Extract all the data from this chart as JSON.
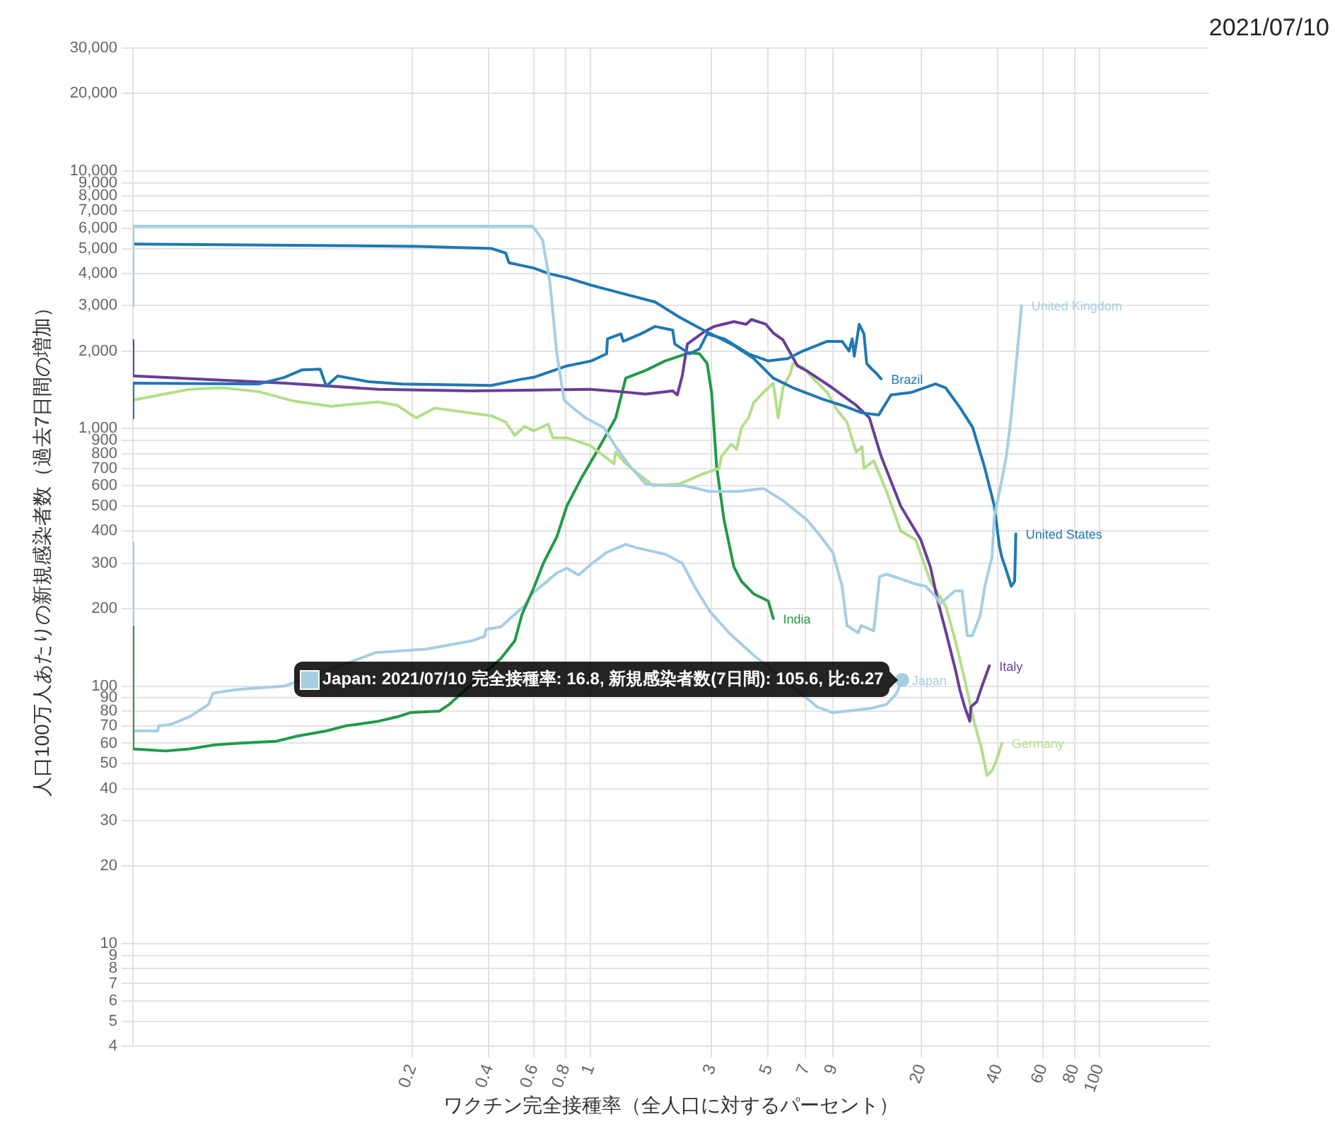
{
  "chart_data": {
    "type": "line",
    "title": "2021/07/10",
    "xlabel": "ワクチン完全接種率（全人口に対するパーセント）",
    "ylabel": "人口100万人あたりの新規感染者数（過去7日間の増加）",
    "log": "xy",
    "grid": true,
    "marker": "none",
    "line_style": "solid",
    "xlim": [
      0.016,
      270
    ],
    "ylim": [
      4,
      30000
    ],
    "xticks": [
      0.2,
      0.4,
      0.6,
      0.8,
      1,
      3,
      5,
      7,
      9,
      20,
      40,
      60,
      80,
      100
    ],
    "yticks": [
      4,
      5,
      6,
      7,
      8,
      9,
      10,
      20,
      30,
      40,
      50,
      60,
      70,
      80,
      90,
      100,
      200,
      300,
      400,
      500,
      600,
      700,
      800,
      900,
      {
        "value": 1000,
        "label": "1,000"
      },
      {
        "value": 2000,
        "label": "2,000"
      },
      {
        "value": 3000,
        "label": "3,000"
      },
      {
        "value": 4000,
        "label": "4,000"
      },
      {
        "value": 5000,
        "label": "5,000"
      },
      {
        "value": 6000,
        "label": "6,000"
      },
      {
        "value": 7000,
        "label": "7,000"
      },
      {
        "value": 8000,
        "label": "8,000"
      },
      {
        "value": 9000,
        "label": "9,000"
      },
      {
        "value": 10000,
        "label": "10,000"
      },
      {
        "value": 20000,
        "label": "20,000"
      },
      {
        "value": 30000,
        "label": "30,000"
      }
    ],
    "annotations": [
      {
        "text": "Japan: 2021/07/10 完全接種率: 16.8, 新規感染者数(7日間): 105.6, 比:6.27",
        "x": 16.8,
        "y": 105.6
      }
    ],
    "series": [
      {
        "name": "United Kingdom",
        "color": "#a6cee3",
        "x": [
          0.016,
          0.016,
          0.59,
          0.61,
          0.65,
          0.695,
          0.74,
          0.79,
          0.84,
          0.96,
          1.13,
          1.26,
          1.44,
          1.65,
          1.97,
          2.34,
          2.94,
          3.83,
          4.8,
          5.73,
          7.14,
          7.98,
          8.98,
          9.77,
          10.2,
          11.3,
          11.6,
          13.0,
          13.7,
          14.6,
          19.0,
          20.8,
          22.7,
          23.7,
          27.1,
          28.9,
          30.3,
          31.7,
          34.0,
          35.5,
          37.9,
          38.7,
          40.6,
          43.1,
          45.0,
          47.0,
          49.5
        ],
        "values": [
          3000,
          6100,
          6100,
          5900,
          5400,
          3700,
          1950,
          1290,
          1220,
          1100,
          1010,
          850,
          710,
          610,
          600,
          600,
          570,
          570,
          585,
          525,
          440,
          385,
          330,
          244,
          172,
          161,
          172,
          164,
          266,
          272,
          249,
          244,
          223,
          209,
          234,
          234,
          157,
          157,
          187,
          244,
          317,
          459,
          573,
          776,
          1100,
          1720,
          3000
        ]
      },
      {
        "name": "United States",
        "color": "#1f78b4",
        "x": [
          0.016,
          0.207,
          0.41,
          0.466,
          0.48,
          0.6,
          0.685,
          0.81,
          1.01,
          1.26,
          1.8,
          2.25,
          2.81,
          3.07,
          3.67,
          4.39,
          5.24,
          6.26,
          8.18,
          9.77,
          11.7,
          13.6,
          15.2,
          18.2,
          22.7,
          24.9,
          28.3,
          31.8,
          35.4,
          38.7,
          40.5,
          41.4,
          43.3,
          45.1,
          46.5,
          47.0
        ],
        "values": [
          5200,
          5100,
          5000,
          4800,
          4400,
          4200,
          4000,
          3850,
          3600,
          3400,
          3100,
          2700,
          2400,
          2300,
          2100,
          1870,
          1570,
          1440,
          1300,
          1230,
          1150,
          1130,
          1350,
          1380,
          1490,
          1440,
          1210,
          1010,
          710,
          500,
          350,
          317,
          278,
          244,
          255,
          390
        ]
      },
      {
        "name": "Brazil",
        "color": "#1f78b4",
        "x": [
          0.016,
          0.016,
          0.05,
          0.063,
          0.074,
          0.087,
          0.092,
          0.102,
          0.135,
          0.182,
          0.41,
          0.53,
          0.6,
          0.81,
          1.01,
          1.16,
          1.17,
          1.32,
          1.35,
          1.58,
          1.8,
          2.11,
          2.15,
          2.46,
          2.69,
          2.88,
          3.36,
          4.19,
          5.01,
          5.98,
          6.85,
          8.53,
          9.77,
          10.4,
          10.7,
          10.9,
          11.4,
          11.9,
          12.2,
          12.7,
          13.3,
          13.9
        ],
        "values": [
          1100,
          1500,
          1490,
          1580,
          1690,
          1700,
          1460,
          1600,
          1520,
          1490,
          1470,
          1550,
          1580,
          1750,
          1830,
          1950,
          2230,
          2330,
          2180,
          2330,
          2490,
          2410,
          2130,
          1950,
          2040,
          2330,
          2230,
          1950,
          1830,
          1870,
          2000,
          2180,
          2180,
          2000,
          2230,
          1910,
          2540,
          2330,
          1790,
          1710,
          1640,
          1560
        ]
      },
      {
        "name": "Italy",
        "color": "#6a3d9a",
        "x": [
          0.016,
          0.016,
          0.063,
          0.147,
          0.345,
          1.0,
          1.32,
          1.65,
          2.11,
          2.2,
          2.3,
          2.41,
          2.81,
          3.07,
          3.67,
          4.1,
          4.3,
          4.9,
          5.24,
          5.72,
          5.98,
          6.53,
          7.14,
          8.93,
          11.1,
          12.5,
          13.9,
          16.6,
          19.9,
          21.7,
          23.2,
          24.9,
          27.2,
          28.3,
          29.6,
          31.0,
          31.3,
          33.0,
          34.5,
          37.0
        ],
        "values": [
          2200,
          1600,
          1500,
          1420,
          1400,
          1420,
          1390,
          1360,
          1400,
          1350,
          1600,
          2130,
          2380,
          2490,
          2600,
          2540,
          2650,
          2540,
          2350,
          2210,
          2040,
          1750,
          1670,
          1440,
          1230,
          1100,
          780,
          500,
          370,
          290,
          214,
          164,
          116,
          97,
          83,
          73,
          83,
          87,
          99,
          120
        ]
      },
      {
        "name": "Germany",
        "color": "#b2df8a",
        "x": [
          0.016,
          0.0267,
          0.036,
          0.05,
          0.068,
          0.096,
          0.147,
          0.175,
          0.207,
          0.245,
          0.41,
          0.466,
          0.506,
          0.552,
          0.6,
          0.684,
          0.714,
          0.81,
          1.0,
          1.24,
          1.26,
          1.38,
          1.77,
          2.25,
          2.81,
          3.21,
          3.28,
          3.59,
          3.76,
          3.93,
          4.19,
          4.39,
          4.79,
          5.24,
          5.48,
          5.72,
          6.12,
          6.26,
          6.85,
          7.49,
          8.54,
          9.33,
          10.2,
          11.1,
          11.7,
          11.9,
          13.0,
          14.6,
          16.6,
          19.0,
          21.7,
          24.9,
          27.2,
          29.6,
          32.4,
          34.5,
          36.2,
          37.9,
          39.6,
          41.4
        ],
        "values": [
          1290,
          1420,
          1440,
          1390,
          1280,
          1220,
          1270,
          1230,
          1100,
          1200,
          1120,
          1060,
          940,
          1020,
          980,
          1040,
          920,
          920,
          860,
          730,
          810,
          730,
          600,
          610,
          670,
          700,
          780,
          870,
          830,
          1010,
          1100,
          1260,
          1380,
          1500,
          1100,
          1440,
          1640,
          1790,
          1730,
          1570,
          1380,
          1180,
          1060,
          810,
          850,
          700,
          750,
          570,
          400,
          370,
          255,
          205,
          150,
          106,
          71,
          57,
          45,
          47,
          52,
          60
        ]
      },
      {
        "name": "India",
        "color": "#229a48",
        "x": [
          0.016,
          0.016,
          0.0215,
          0.0267,
          0.033,
          0.041,
          0.058,
          0.071,
          0.092,
          0.109,
          0.147,
          0.175,
          0.198,
          0.256,
          0.28,
          0.446,
          0.506,
          0.54,
          0.6,
          0.655,
          0.74,
          0.81,
          0.93,
          1.06,
          1.26,
          1.35,
          1.38,
          1.65,
          1.97,
          2.46,
          2.69,
          2.88,
          3.0,
          3.14,
          3.36,
          3.67,
          3.93,
          4.39,
          5.01,
          5.24
        ],
        "values": [
          170,
          57,
          56,
          57,
          59,
          60,
          61,
          64,
          67,
          70,
          73,
          76,
          79,
          80,
          85,
          128,
          150,
          190,
          240,
          300,
          380,
          500,
          650,
          810,
          1100,
          1440,
          1570,
          1680,
          1830,
          1970,
          1950,
          1790,
          1380,
          710,
          440,
          290,
          255,
          228,
          214,
          183
        ]
      },
      {
        "name": "Japan",
        "color": "#a6cee3",
        "x": [
          0.016,
          0.016,
          0.02,
          0.0202,
          0.0225,
          0.0267,
          0.0317,
          0.033,
          0.041,
          0.063,
          0.144,
          0.225,
          0.344,
          0.385,
          0.39,
          0.446,
          0.506,
          0.552,
          0.59,
          0.655,
          0.74,
          0.81,
          0.9,
          1.02,
          1.16,
          1.38,
          1.51,
          1.97,
          2.3,
          2.57,
          2.94,
          3.51,
          4.38,
          7.81,
          8.93,
          10.2,
          12.7,
          14.6,
          15.9,
          16.6,
          16.8
        ],
        "values": [
          360,
          67,
          67,
          70,
          71,
          76,
          85,
          94,
          97,
          100,
          135,
          139,
          150,
          156,
          166,
          170,
          190,
          205,
          228,
          248,
          275,
          287,
          270,
          300,
          330,
          355,
          345,
          325,
          300,
          244,
          196,
          161,
          132,
          83,
          79,
          80,
          82,
          85,
          93,
          102,
          105.6
        ]
      }
    ]
  }
}
